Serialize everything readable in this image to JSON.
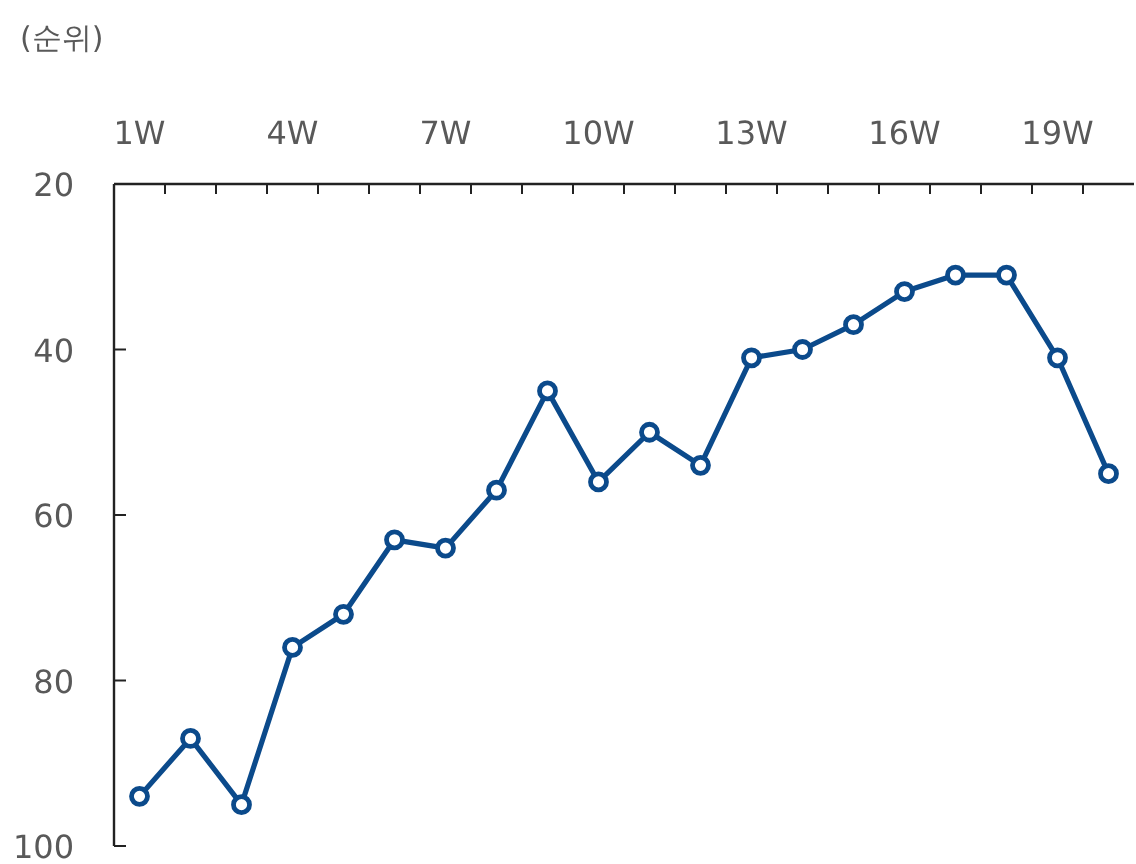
{
  "chart_data": {
    "type": "line",
    "ylabel": "(순위)",
    "categories": [
      "1W",
      null,
      null,
      "4W",
      null,
      null,
      "7W",
      null,
      null,
      "10W",
      null,
      null,
      "13W",
      null,
      null,
      "16W",
      null,
      null,
      "19W",
      null
    ],
    "series": [
      {
        "color": "#0b4a8b",
        "values": [
          94,
          87,
          95,
          76,
          72,
          63,
          64,
          57,
          45,
          56,
          50,
          54,
          41,
          40,
          37,
          33,
          31,
          31,
          41,
          55
        ]
      }
    ],
    "ylim": [
      100,
      20
    ],
    "yticks": [
      20,
      40,
      60,
      80,
      100
    ],
    "marker": "circle",
    "line_style": "solid"
  }
}
